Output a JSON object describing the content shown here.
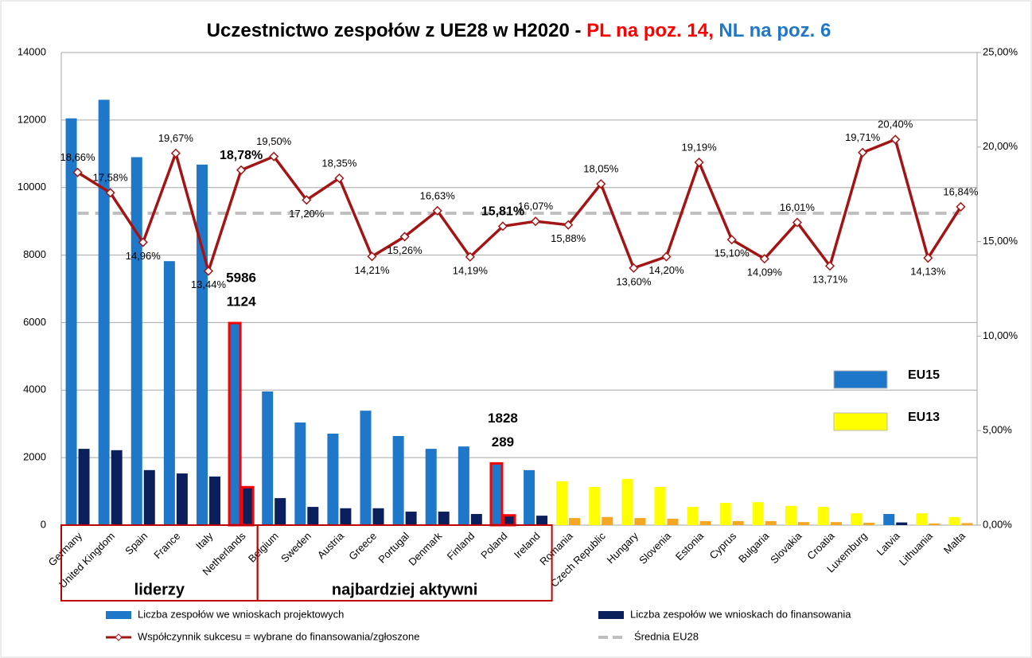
{
  "chart_data": {
    "type": "bar",
    "title_parts": [
      {
        "text": "Uczestnictwo zespołów z UE28 w H2020 - ",
        "color": "#000000"
      },
      {
        "text": "PL na poz. 14,",
        "color": "#ff0000"
      },
      {
        "text": " NL na poz. 6",
        "color": "#1f77c9"
      }
    ],
    "categories": [
      "Germany",
      "United Kingdom",
      "Spain",
      "France",
      "Italy",
      "Netherlands",
      "Belgium",
      "Sweden",
      "Austria",
      "Greece",
      "Portugal",
      "Denmark",
      "Finland",
      "Poland",
      "Ireland",
      "Romania",
      "Czech Republic",
      "Hungary",
      "Slovenia",
      "Estonia",
      "Cyprus",
      "Bulgaria",
      "Slovakia",
      "Croatia",
      "Luxemburg",
      "Latvia",
      "Lithuania",
      "Malta"
    ],
    "series": [
      {
        "name": "Liczba zespołów we wnioskach projektowych",
        "color": "#1f77c9",
        "point_colors": [
          "#1f77c9",
          "#1f77c9",
          "#1f77c9",
          "#1f77c9",
          "#1f77c9",
          "#1f77c9",
          "#1f77c9",
          "#1f77c9",
          "#1f77c9",
          "#1f77c9",
          "#1f77c9",
          "#1f77c9",
          "#1f77c9",
          "#1f77c9",
          "#1f77c9",
          "#ffff00",
          "#ffff00",
          "#ffff00",
          "#ffff00",
          "#ffff00",
          "#ffff00",
          "#ffff00",
          "#ffff00",
          "#ffff00",
          "#ffff00",
          "#1f77c9",
          "#ffff00",
          "#ffff00"
        ],
        "values": [
          12050,
          12600,
          10900,
          7820,
          10680,
          5986,
          3960,
          3040,
          2710,
          3390,
          2640,
          2260,
          2330,
          1828,
          1630,
          1300,
          1130,
          1370,
          1130,
          540,
          660,
          680,
          570,
          540,
          350,
          330,
          350,
          240
        ],
        "value_labels": [
          null,
          null,
          null,
          null,
          null,
          "5986",
          null,
          null,
          null,
          null,
          null,
          null,
          null,
          "1828",
          null,
          null,
          null,
          null,
          null,
          null,
          null,
          null,
          null,
          null,
          null,
          null,
          null,
          null
        ]
      },
      {
        "name": "Liczba zespołów we wnioskach do finansowania",
        "color": "#0b1f5c",
        "point_colors": [
          "#0b1f5c",
          "#0b1f5c",
          "#0b1f5c",
          "#0b1f5c",
          "#0b1f5c",
          "#0b1f5c",
          "#0b1f5c",
          "#0b1f5c",
          "#0b1f5c",
          "#0b1f5c",
          "#0b1f5c",
          "#0b1f5c",
          "#0b1f5c",
          "#0b1f5c",
          "#0b1f5c",
          "#f5a623",
          "#f5a623",
          "#f5a623",
          "#f5a623",
          "#f5a623",
          "#f5a623",
          "#f5a623",
          "#f5a623",
          "#f5a623",
          "#f5a623",
          "#0b1f5c",
          "#f5a623",
          "#f5a623"
        ],
        "values": [
          2260,
          2220,
          1630,
          1530,
          1440,
          1124,
          800,
          540,
          500,
          500,
          400,
          400,
          330,
          289,
          280,
          210,
          240,
          210,
          190,
          120,
          120,
          120,
          90,
          90,
          70,
          80,
          50,
          60
        ],
        "value_labels": [
          null,
          null,
          null,
          null,
          null,
          "1124",
          null,
          null,
          null,
          null,
          null,
          null,
          null,
          "289",
          null,
          null,
          null,
          null,
          null,
          null,
          null,
          null,
          null,
          null,
          null,
          null,
          null,
          null
        ]
      },
      {
        "name": "Współczynnik sukcesu = wybrane do finansowania/zgłoszone",
        "color": "#a31515",
        "axis": "y2",
        "values": [
          18.66,
          17.58,
          14.96,
          19.67,
          13.44,
          18.78,
          19.5,
          17.2,
          18.35,
          14.21,
          15.26,
          16.63,
          14.19,
          15.81,
          16.07,
          15.88,
          18.05,
          13.6,
          14.2,
          19.19,
          15.1,
          14.09,
          16.01,
          13.71,
          19.71,
          20.4,
          14.13,
          16.84
        ],
        "value_labels": [
          "18,66%",
          "17,58%",
          "14,96%",
          "19,67%",
          "13,44%",
          "18,78%",
          "19,50%",
          "17,20%",
          "18,35%",
          "14,21%",
          "15,26%",
          "16,63%",
          "14,19%",
          "15,81%",
          "16,07%",
          "15,88%",
          "18,05%",
          "13,60%",
          "14,20%",
          "19,19%",
          "15,10%",
          "14,09%",
          "16,01%",
          "13,71%",
          "19,71%",
          "20,40%",
          "14,13%",
          "16,84%"
        ]
      }
    ],
    "reference_line": {
      "name": "Średnia EU28",
      "value": 16.5,
      "color": "#bfbfbf",
      "axis": "y2"
    },
    "highlight": [
      5,
      13
    ],
    "highlight_color": "#ff0000",
    "groups": [
      {
        "label": "liderzy",
        "start": 0,
        "end": 5
      },
      {
        "label": "najbardziej aktywni",
        "start": 6,
        "end": 14
      }
    ],
    "region_legend": [
      {
        "label": "EU15",
        "color": "#1f77c9"
      },
      {
        "label": "EU13",
        "color": "#ffff00"
      }
    ],
    "ylim": [
      0,
      14000
    ],
    "yticks": [
      0,
      2000,
      4000,
      6000,
      8000,
      10000,
      12000,
      14000
    ],
    "y2lim": [
      0,
      25
    ],
    "y2ticks": [
      {
        "value": 0,
        "label": "0,00%"
      },
      {
        "value": 5,
        "label": "5,00%"
      },
      {
        "value": 10,
        "label": "10,00%"
      },
      {
        "value": 15,
        "label": "15,00%"
      },
      {
        "value": 20,
        "label": "20,00%"
      },
      {
        "value": 25,
        "label": "25,00%"
      }
    ],
    "grid": true
  }
}
